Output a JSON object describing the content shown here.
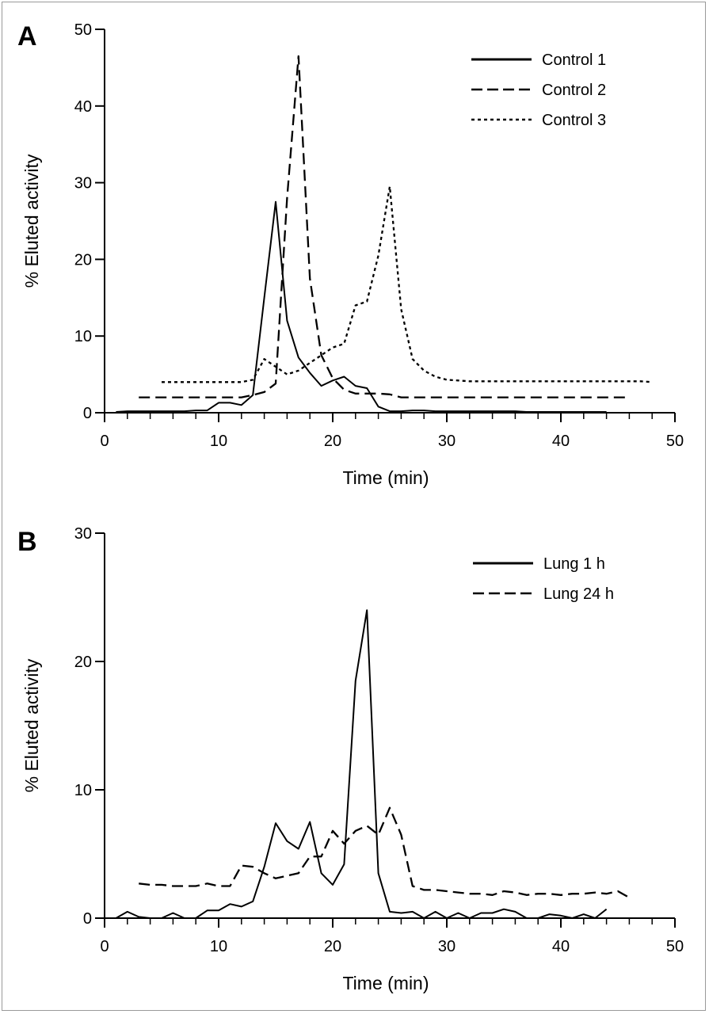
{
  "chart_data": [
    {
      "panel": "A",
      "type": "line",
      "xlabel": "Time (min)",
      "ylabel": "% Eluted activity",
      "xlim": [
        0,
        50
      ],
      "ylim": [
        0,
        50
      ],
      "xticks": [
        0,
        10,
        20,
        30,
        40,
        50
      ],
      "yticks": [
        0,
        10,
        20,
        30,
        40,
        50
      ],
      "legend_position": "top-right",
      "grid": false,
      "series": [
        {
          "name": "Control 1",
          "style": "solid",
          "x": [
            1,
            2,
            3,
            4,
            5,
            6,
            7,
            8,
            9,
            10,
            11,
            12,
            13,
            14,
            15,
            16,
            17,
            18,
            19,
            20,
            21,
            22,
            23,
            24,
            25,
            26,
            27,
            28,
            29,
            30,
            31,
            32,
            33,
            34,
            35,
            36,
            37,
            38,
            39,
            40,
            41,
            42,
            43,
            44
          ],
          "y": [
            0.1,
            0.2,
            0.2,
            0.2,
            0.2,
            0.2,
            0.2,
            0.3,
            0.3,
            1.3,
            1.3,
            1.0,
            2.3,
            15.0,
            27.5,
            12.0,
            7.2,
            5.2,
            3.5,
            4.2,
            4.7,
            3.5,
            3.2,
            0.8,
            0.2,
            0.2,
            0.3,
            0.3,
            0.2,
            0.2,
            0.2,
            0.2,
            0.2,
            0.2,
            0.2,
            0.2,
            0.1,
            0.1,
            0.1,
            0.1,
            0.1,
            0.1,
            0.1,
            0.1
          ]
        },
        {
          "name": "Control 2",
          "style": "dashed",
          "x": [
            3,
            4,
            5,
            6,
            7,
            8,
            9,
            10,
            11,
            12,
            13,
            14,
            15,
            16,
            17,
            18,
            19,
            20,
            21,
            22,
            23,
            24,
            25,
            26,
            27,
            28,
            29,
            30,
            31,
            32,
            33,
            34,
            35,
            36,
            37,
            38,
            39,
            40,
            41,
            42,
            43,
            44,
            45,
            46
          ],
          "y": [
            2.0,
            2.0,
            2.0,
            2.0,
            2.0,
            2.0,
            2.0,
            2.0,
            2.0,
            2.0,
            2.3,
            2.7,
            3.8,
            28.0,
            46.5,
            17.5,
            7.5,
            4.5,
            3.0,
            2.5,
            2.5,
            2.5,
            2.4,
            2.0,
            2.0,
            2.0,
            2.0,
            2.0,
            2.0,
            2.0,
            2.0,
            2.0,
            2.0,
            2.0,
            2.0,
            2.0,
            2.0,
            2.0,
            2.0,
            2.0,
            2.0,
            2.0,
            2.0,
            2.0
          ]
        },
        {
          "name": "Control 3",
          "style": "dotted",
          "x": [
            5,
            6,
            7,
            8,
            9,
            10,
            11,
            12,
            13,
            14,
            15,
            16,
            17,
            18,
            19,
            20,
            21,
            22,
            23,
            24,
            25,
            26,
            27,
            28,
            29,
            30,
            31,
            32,
            33,
            34,
            35,
            36,
            37,
            38,
            39,
            40,
            41,
            42,
            43,
            44,
            45,
            46,
            47,
            48
          ],
          "y": [
            4.0,
            4.0,
            4.0,
            4.0,
            4.0,
            4.0,
            4.0,
            4.0,
            4.3,
            7.0,
            6.0,
            5.0,
            5.5,
            6.5,
            7.5,
            8.5,
            9.0,
            14.0,
            14.5,
            20.5,
            29.5,
            13.5,
            7.0,
            5.5,
            4.7,
            4.3,
            4.2,
            4.1,
            4.1,
            4.1,
            4.1,
            4.1,
            4.1,
            4.1,
            4.1,
            4.1,
            4.1,
            4.1,
            4.1,
            4.1,
            4.1,
            4.1,
            4.1,
            4.0
          ]
        }
      ]
    },
    {
      "panel": "B",
      "type": "line",
      "xlabel": "Time (min)",
      "ylabel": "% Eluted activity",
      "xlim": [
        0,
        50
      ],
      "ylim": [
        0,
        30
      ],
      "xticks": [
        0,
        10,
        20,
        30,
        40,
        50
      ],
      "yticks": [
        0,
        10,
        20,
        30
      ],
      "legend_position": "top-right",
      "grid": false,
      "series": [
        {
          "name": "Lung 1 h",
          "style": "solid",
          "x": [
            1,
            2,
            3,
            4,
            5,
            6,
            7,
            8,
            9,
            10,
            11,
            12,
            13,
            14,
            15,
            16,
            17,
            18,
            19,
            20,
            21,
            22,
            23,
            24,
            25,
            26,
            27,
            28,
            29,
            30,
            31,
            32,
            33,
            34,
            35,
            36,
            37,
            38,
            39,
            40,
            41,
            42,
            43,
            44
          ],
          "y": [
            0,
            0.5,
            0.1,
            0,
            0,
            0.4,
            0,
            0,
            0.6,
            0.6,
            1.1,
            0.9,
            1.3,
            4.0,
            7.4,
            6.0,
            5.4,
            7.5,
            3.5,
            2.6,
            4.2,
            18.5,
            24.0,
            3.5,
            0.5,
            0.4,
            0.5,
            0,
            0.5,
            0,
            0.4,
            0,
            0.4,
            0.4,
            0.7,
            0.5,
            0,
            0,
            0.3,
            0.2,
            0,
            0.3,
            0,
            0.7
          ]
        },
        {
          "name": "Lung 24 h",
          "style": "dashed",
          "x": [
            3,
            4,
            5,
            6,
            7,
            8,
            9,
            10,
            11,
            12,
            13,
            14,
            15,
            16,
            17,
            18,
            19,
            20,
            21,
            22,
            23,
            24,
            25,
            26,
            27,
            28,
            29,
            30,
            31,
            32,
            33,
            34,
            35,
            36,
            37,
            38,
            39,
            40,
            41,
            42,
            43,
            44,
            45,
            46
          ],
          "y": [
            2.7,
            2.6,
            2.6,
            2.5,
            2.5,
            2.5,
            2.7,
            2.5,
            2.5,
            4.1,
            4.0,
            3.5,
            3.1,
            3.3,
            3.5,
            4.8,
            4.8,
            6.8,
            5.8,
            6.8,
            7.2,
            6.5,
            8.6,
            6.5,
            2.5,
            2.2,
            2.2,
            2.1,
            2.0,
            1.9,
            1.9,
            1.8,
            2.1,
            2.0,
            1.8,
            1.9,
            1.9,
            1.8,
            1.9,
            1.9,
            2.0,
            1.9,
            2.1,
            1.6
          ]
        }
      ]
    }
  ]
}
